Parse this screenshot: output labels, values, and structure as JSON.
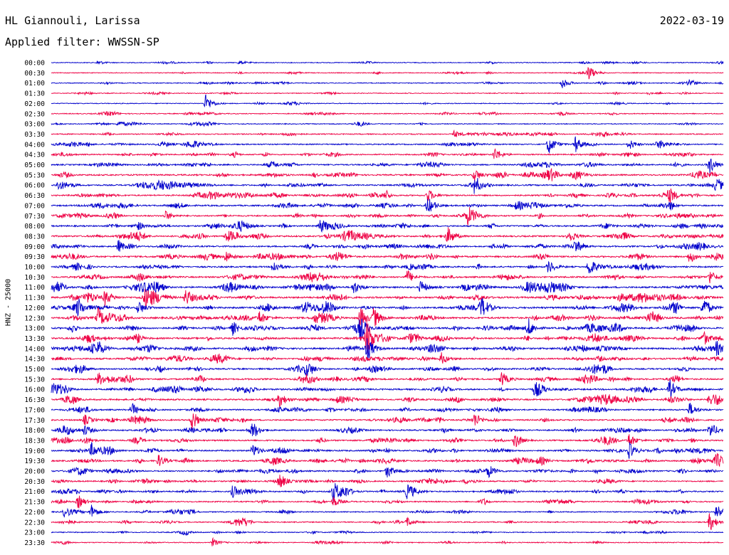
{
  "header": {
    "station": "HL Giannouli, Larissa",
    "date": "2022-03-19",
    "filter": "Applied filter: WWSSN-SP"
  },
  "chart_data": {
    "type": "line",
    "title": "HL Giannouli, Larissa",
    "ylabel": "HNZ - 25000",
    "colors": [
      "#0000cc",
      "#ee0044"
    ],
    "rows": [
      {
        "label": "00:00",
        "color": "#0000cc",
        "activity": 0.15,
        "events": [
          {
            "t": 0.07,
            "amp": 3
          },
          {
            "t": 0.28,
            "amp": 3
          }
        ]
      },
      {
        "label": "00:30",
        "color": "#ee0044",
        "activity": 0.15,
        "events": [
          {
            "t": 0.8,
            "amp": 10
          }
        ]
      },
      {
        "label": "01:00",
        "color": "#0000cc",
        "activity": 0.2,
        "events": [
          {
            "t": 0.76,
            "amp": 8
          },
          {
            "t": 0.95,
            "amp": 6
          }
        ]
      },
      {
        "label": "01:30",
        "color": "#ee0044",
        "activity": 0.15,
        "events": []
      },
      {
        "label": "02:00",
        "color": "#0000cc",
        "activity": 0.15,
        "events": [
          {
            "t": 0.23,
            "amp": 13
          }
        ]
      },
      {
        "label": "02:30",
        "color": "#ee0044",
        "activity": 0.25,
        "events": [
          {
            "t": 0.2,
            "amp": 3
          }
        ]
      },
      {
        "label": "03:00",
        "color": "#0000cc",
        "activity": 0.2,
        "events": [
          {
            "t": 0.1,
            "amp": 4
          }
        ]
      },
      {
        "label": "03:30",
        "color": "#ee0044",
        "activity": 0.35,
        "events": [
          {
            "t": 0.6,
            "amp": 5
          }
        ]
      },
      {
        "label": "04:00",
        "color": "#0000cc",
        "activity": 0.45,
        "events": [
          {
            "t": 0.74,
            "amp": 14
          },
          {
            "t": 0.78,
            "amp": 12
          },
          {
            "t": 0.86,
            "amp": 8
          }
        ]
      },
      {
        "label": "04:30",
        "color": "#ee0044",
        "activity": 0.45,
        "events": [
          {
            "t": 0.66,
            "amp": 10
          }
        ]
      },
      {
        "label": "05:00",
        "color": "#0000cc",
        "activity": 0.55,
        "events": [
          {
            "t": 0.98,
            "amp": 12
          }
        ]
      },
      {
        "label": "05:30",
        "color": "#ee0044",
        "activity": 0.65,
        "events": [
          {
            "t": 0.63,
            "amp": 9
          }
        ]
      },
      {
        "label": "06:00",
        "color": "#0000cc",
        "activity": 0.6,
        "events": [
          {
            "t": 0.01,
            "amp": 6
          },
          {
            "t": 0.63,
            "amp": 10
          },
          {
            "t": 0.99,
            "amp": 10
          }
        ]
      },
      {
        "label": "06:30",
        "color": "#ee0044",
        "activity": 0.6,
        "events": [
          {
            "t": 0.56,
            "amp": 10
          },
          {
            "t": 0.92,
            "amp": 11
          }
        ]
      },
      {
        "label": "07:00",
        "color": "#0000cc",
        "activity": 0.6,
        "events": [
          {
            "t": 0.56,
            "amp": 11
          }
        ]
      },
      {
        "label": "07:30",
        "color": "#ee0044",
        "activity": 0.6,
        "events": [
          {
            "t": 0.17,
            "amp": 7
          },
          {
            "t": 0.62,
            "amp": 10
          }
        ]
      },
      {
        "label": "08:00",
        "color": "#0000cc",
        "activity": 0.65,
        "events": [
          {
            "t": 0.4,
            "amp": 9
          }
        ]
      },
      {
        "label": "08:30",
        "color": "#ee0044",
        "activity": 0.7,
        "events": [
          {
            "t": 0.26,
            "amp": 8
          },
          {
            "t": 0.59,
            "amp": 11
          },
          {
            "t": 0.77,
            "amp": 10
          }
        ]
      },
      {
        "label": "09:00",
        "color": "#0000cc",
        "activity": 0.65,
        "events": [
          {
            "t": 0.1,
            "amp": 9
          },
          {
            "t": 0.78,
            "amp": 10
          }
        ]
      },
      {
        "label": "09:30",
        "color": "#ee0044",
        "activity": 0.75,
        "events": [
          {
            "t": 0.26,
            "amp": 9
          },
          {
            "t": 0.95,
            "amp": 10
          }
        ]
      },
      {
        "label": "10:00",
        "color": "#0000cc",
        "activity": 0.65,
        "events": [
          {
            "t": 0.33,
            "amp": 10
          },
          {
            "t": 0.74,
            "amp": 10
          },
          {
            "t": 0.8,
            "amp": 13
          }
        ]
      },
      {
        "label": "10:30",
        "color": "#ee0044",
        "activity": 0.7,
        "events": [
          {
            "t": 0.53,
            "amp": 10
          },
          {
            "t": 0.98,
            "amp": 10
          }
        ]
      },
      {
        "label": "11:00",
        "color": "#0000cc",
        "activity": 0.85,
        "events": [
          {
            "t": 0.45,
            "amp": 10
          },
          {
            "t": 0.55,
            "amp": 10
          }
        ]
      },
      {
        "label": "11:30",
        "color": "#ee0044",
        "activity": 0.85,
        "events": [
          {
            "t": 0.08,
            "amp": 12
          },
          {
            "t": 0.14,
            "amp": 10
          },
          {
            "t": 0.2,
            "amp": 10
          }
        ]
      },
      {
        "label": "12:00",
        "color": "#0000cc",
        "activity": 0.85,
        "events": [
          {
            "t": 0.04,
            "amp": 14
          },
          {
            "t": 0.13,
            "amp": 10
          },
          {
            "t": 0.64,
            "amp": 12
          },
          {
            "t": 0.97,
            "amp": 14
          }
        ]
      },
      {
        "label": "12:30",
        "color": "#ee0044",
        "activity": 0.85,
        "events": [
          {
            "t": 0.07,
            "amp": 12
          },
          {
            "t": 0.31,
            "amp": 10
          },
          {
            "t": 0.46,
            "amp": 16
          },
          {
            "t": 0.48,
            "amp": 14
          }
        ]
      },
      {
        "label": "13:00",
        "color": "#0000cc",
        "activity": 0.8,
        "events": [
          {
            "t": 0.27,
            "amp": 10
          },
          {
            "t": 0.46,
            "amp": 12
          },
          {
            "t": 0.71,
            "amp": 10
          }
        ]
      },
      {
        "label": "13:30",
        "color": "#ee0044",
        "activity": 0.8,
        "events": [
          {
            "t": 0.47,
            "amp": 24
          },
          {
            "t": 0.97,
            "amp": 10
          }
        ]
      },
      {
        "label": "14:00",
        "color": "#0000cc",
        "activity": 0.8,
        "events": [
          {
            "t": 0.07,
            "amp": 12
          },
          {
            "t": 0.47,
            "amp": 18
          },
          {
            "t": 0.99,
            "amp": 8
          }
        ]
      },
      {
        "label": "14:30",
        "color": "#ee0044",
        "activity": 0.7,
        "events": [
          {
            "t": 0.58,
            "amp": 9
          }
        ]
      },
      {
        "label": "15:00",
        "color": "#0000cc",
        "activity": 0.65,
        "events": [
          {
            "t": 0.38,
            "amp": 8
          }
        ]
      },
      {
        "label": "15:30",
        "color": "#ee0044",
        "activity": 0.7,
        "events": [
          {
            "t": 0.07,
            "amp": 8
          },
          {
            "t": 0.67,
            "amp": 11
          }
        ]
      },
      {
        "label": "16:00",
        "color": "#0000cc",
        "activity": 0.7,
        "events": [
          {
            "t": 0.0,
            "amp": 8
          },
          {
            "t": 0.72,
            "amp": 10
          },
          {
            "t": 0.92,
            "amp": 14
          }
        ]
      },
      {
        "label": "16:30",
        "color": "#ee0044",
        "activity": 0.7,
        "events": [
          {
            "t": 0.34,
            "amp": 11
          },
          {
            "t": 0.98,
            "amp": 9
          }
        ]
      },
      {
        "label": "17:00",
        "color": "#0000cc",
        "activity": 0.6,
        "events": [
          {
            "t": 0.12,
            "amp": 10
          },
          {
            "t": 0.95,
            "amp": 10
          }
        ]
      },
      {
        "label": "17:30",
        "color": "#ee0044",
        "activity": 0.6,
        "events": [
          {
            "t": 0.05,
            "amp": 8
          },
          {
            "t": 0.21,
            "amp": 12
          },
          {
            "t": 0.63,
            "amp": 10
          }
        ]
      },
      {
        "label": "18:00",
        "color": "#0000cc",
        "activity": 0.6,
        "events": [
          {
            "t": 0.05,
            "amp": 8
          },
          {
            "t": 0.3,
            "amp": 10
          },
          {
            "t": 0.98,
            "amp": 10
          }
        ]
      },
      {
        "label": "18:30",
        "color": "#ee0044",
        "activity": 0.6,
        "events": [
          {
            "t": 0.69,
            "amp": 10
          },
          {
            "t": 0.86,
            "amp": 10
          }
        ]
      },
      {
        "label": "19:00",
        "color": "#0000cc",
        "activity": 0.65,
        "events": [
          {
            "t": 0.06,
            "amp": 10
          },
          {
            "t": 0.3,
            "amp": 10
          },
          {
            "t": 0.86,
            "amp": 12
          }
        ]
      },
      {
        "label": "19:30",
        "color": "#ee0044",
        "activity": 0.65,
        "events": [
          {
            "t": 0.16,
            "amp": 9
          },
          {
            "t": 0.99,
            "amp": 9
          }
        ]
      },
      {
        "label": "20:00",
        "color": "#0000cc",
        "activity": 0.6,
        "events": [
          {
            "t": 0.5,
            "amp": 10
          },
          {
            "t": 0.65,
            "amp": 10
          }
        ]
      },
      {
        "label": "20:30",
        "color": "#ee0044",
        "activity": 0.5,
        "events": [
          {
            "t": 0.34,
            "amp": 10
          }
        ]
      },
      {
        "label": "21:00",
        "color": "#0000cc",
        "activity": 0.55,
        "events": [
          {
            "t": 0.27,
            "amp": 9
          },
          {
            "t": 0.42,
            "amp": 14
          },
          {
            "t": 0.53,
            "amp": 9
          }
        ]
      },
      {
        "label": "21:30",
        "color": "#ee0044",
        "activity": 0.45,
        "events": [
          {
            "t": 0.04,
            "amp": 10
          },
          {
            "t": 0.42,
            "amp": 8
          }
        ]
      },
      {
        "label": "22:00",
        "color": "#0000cc",
        "activity": 0.35,
        "events": [
          {
            "t": 0.02,
            "amp": 8
          },
          {
            "t": 0.06,
            "amp": 10
          },
          {
            "t": 0.99,
            "amp": 12
          }
        ]
      },
      {
        "label": "22:30",
        "color": "#ee0044",
        "activity": 0.35,
        "events": [
          {
            "t": 0.53,
            "amp": 7
          },
          {
            "t": 0.98,
            "amp": 14
          }
        ]
      },
      {
        "label": "23:00",
        "color": "#0000cc",
        "activity": 0.25,
        "events": []
      },
      {
        "label": "23:30",
        "color": "#ee0044",
        "activity": 0.2,
        "events": [
          {
            "t": 0.24,
            "amp": 6
          }
        ]
      }
    ]
  }
}
